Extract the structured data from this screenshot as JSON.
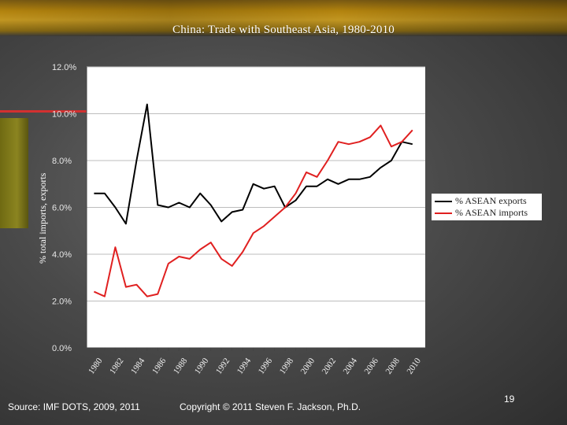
{
  "slide": {
    "source": "Source: IMF DOTS, 2009, 2011",
    "copyright": "Copyright © 2011 Steven F. Jackson, Ph.D.",
    "page_number": "19"
  },
  "chart_data": {
    "type": "line",
    "title": "China: Trade with Southeast Asia, 1980-2010",
    "xlabel": "",
    "ylabel": "% total imports, exports",
    "x": [
      1980,
      1981,
      1982,
      1983,
      1984,
      1985,
      1986,
      1987,
      1988,
      1989,
      1990,
      1991,
      1992,
      1993,
      1994,
      1995,
      1996,
      1997,
      1998,
      1999,
      2000,
      2001,
      2002,
      2003,
      2004,
      2005,
      2006,
      2007,
      2008,
      2009,
      2010
    ],
    "xlim": [
      1979.3,
      2011.2
    ],
    "ylim": [
      0,
      12
    ],
    "x_tick_labels": [
      "1980",
      "1982",
      "1984",
      "1986",
      "1988",
      "1990",
      "1992",
      "1994",
      "1996",
      "1998",
      "2000",
      "2002",
      "2004",
      "2006",
      "2008",
      "2010"
    ],
    "x_tick_values": [
      1980,
      1982,
      1984,
      1986,
      1988,
      1990,
      1992,
      1994,
      1996,
      1998,
      2000,
      2002,
      2004,
      2006,
      2008,
      2010
    ],
    "y_tick_labels": [
      "0.0%",
      "2.0%",
      "4.0%",
      "6.0%",
      "8.0%",
      "10.0%",
      "12.0%"
    ],
    "y_tick_values": [
      0,
      2,
      4,
      6,
      8,
      10,
      12
    ],
    "grid": true,
    "legend_position": "right",
    "plot_background": "#ffffff",
    "series": [
      {
        "name": "% ASEAN exports",
        "color": "#000000",
        "values": [
          6.6,
          6.6,
          6.0,
          5.3,
          8.0,
          10.4,
          6.1,
          6.0,
          6.2,
          6.0,
          6.6,
          6.1,
          5.4,
          5.8,
          5.9,
          7.0,
          6.8,
          6.9,
          6.0,
          6.3,
          6.9,
          6.9,
          7.2,
          7.0,
          7.2,
          7.2,
          7.3,
          7.7,
          8.0,
          8.8,
          8.7
        ]
      },
      {
        "name": "% ASEAN imports",
        "legend_label": "% ASEAN imports",
        "color": "#e02020",
        "values": [
          2.4,
          2.2,
          4.3,
          2.6,
          2.7,
          2.2,
          2.3,
          3.6,
          3.9,
          3.8,
          4.2,
          4.5,
          3.8,
          3.5,
          4.1,
          4.9,
          5.2,
          5.6,
          6.0,
          6.6,
          7.5,
          7.3,
          8.0,
          8.8,
          8.7,
          8.8,
          9.0,
          9.5,
          8.6,
          8.8,
          9.3
        ]
      }
    ]
  }
}
